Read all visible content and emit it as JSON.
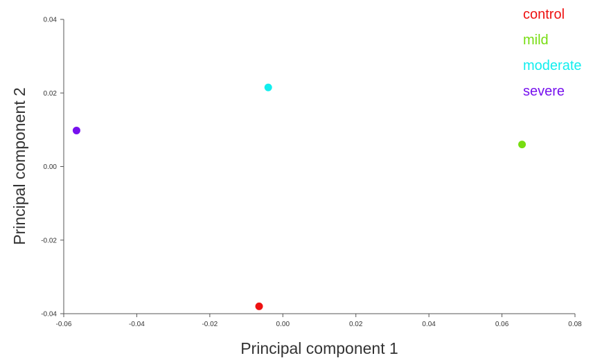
{
  "chart_data": {
    "type": "scatter",
    "title": "",
    "xlabel": "Principal component 1",
    "ylabel": "Principal component 2",
    "xlim": [
      -0.06,
      0.08
    ],
    "ylim": [
      -0.04,
      0.04
    ],
    "xticks": [
      -0.06,
      -0.04,
      -0.02,
      0.0,
      0.02,
      0.04,
      0.06,
      0.08
    ],
    "xtick_labels": [
      "-0.06",
      "-0.04",
      "-0.02",
      "0.00",
      "0.02",
      "0.04",
      "0.06",
      "0.08"
    ],
    "yticks": [
      -0.04,
      -0.02,
      0.0,
      0.02,
      0.04
    ],
    "ytick_labels": [
      "-0.04",
      "-0.02",
      "0.00",
      "0.02",
      "0.04"
    ],
    "grid": false,
    "legend_position": "top-right",
    "series": [
      {
        "name": "control",
        "color": "#ee1111",
        "x": [
          -0.0065
        ],
        "y": [
          -0.038
        ]
      },
      {
        "name": "mild",
        "color": "#77dd11",
        "x": [
          0.0655
        ],
        "y": [
          0.006
        ]
      },
      {
        "name": "moderate",
        "color": "#11eeee",
        "x": [
          -0.004
        ],
        "y": [
          0.0215
        ]
      },
      {
        "name": "severe",
        "color": "#7711ee",
        "x": [
          -0.0565
        ],
        "y": [
          0.0098
        ]
      }
    ]
  }
}
